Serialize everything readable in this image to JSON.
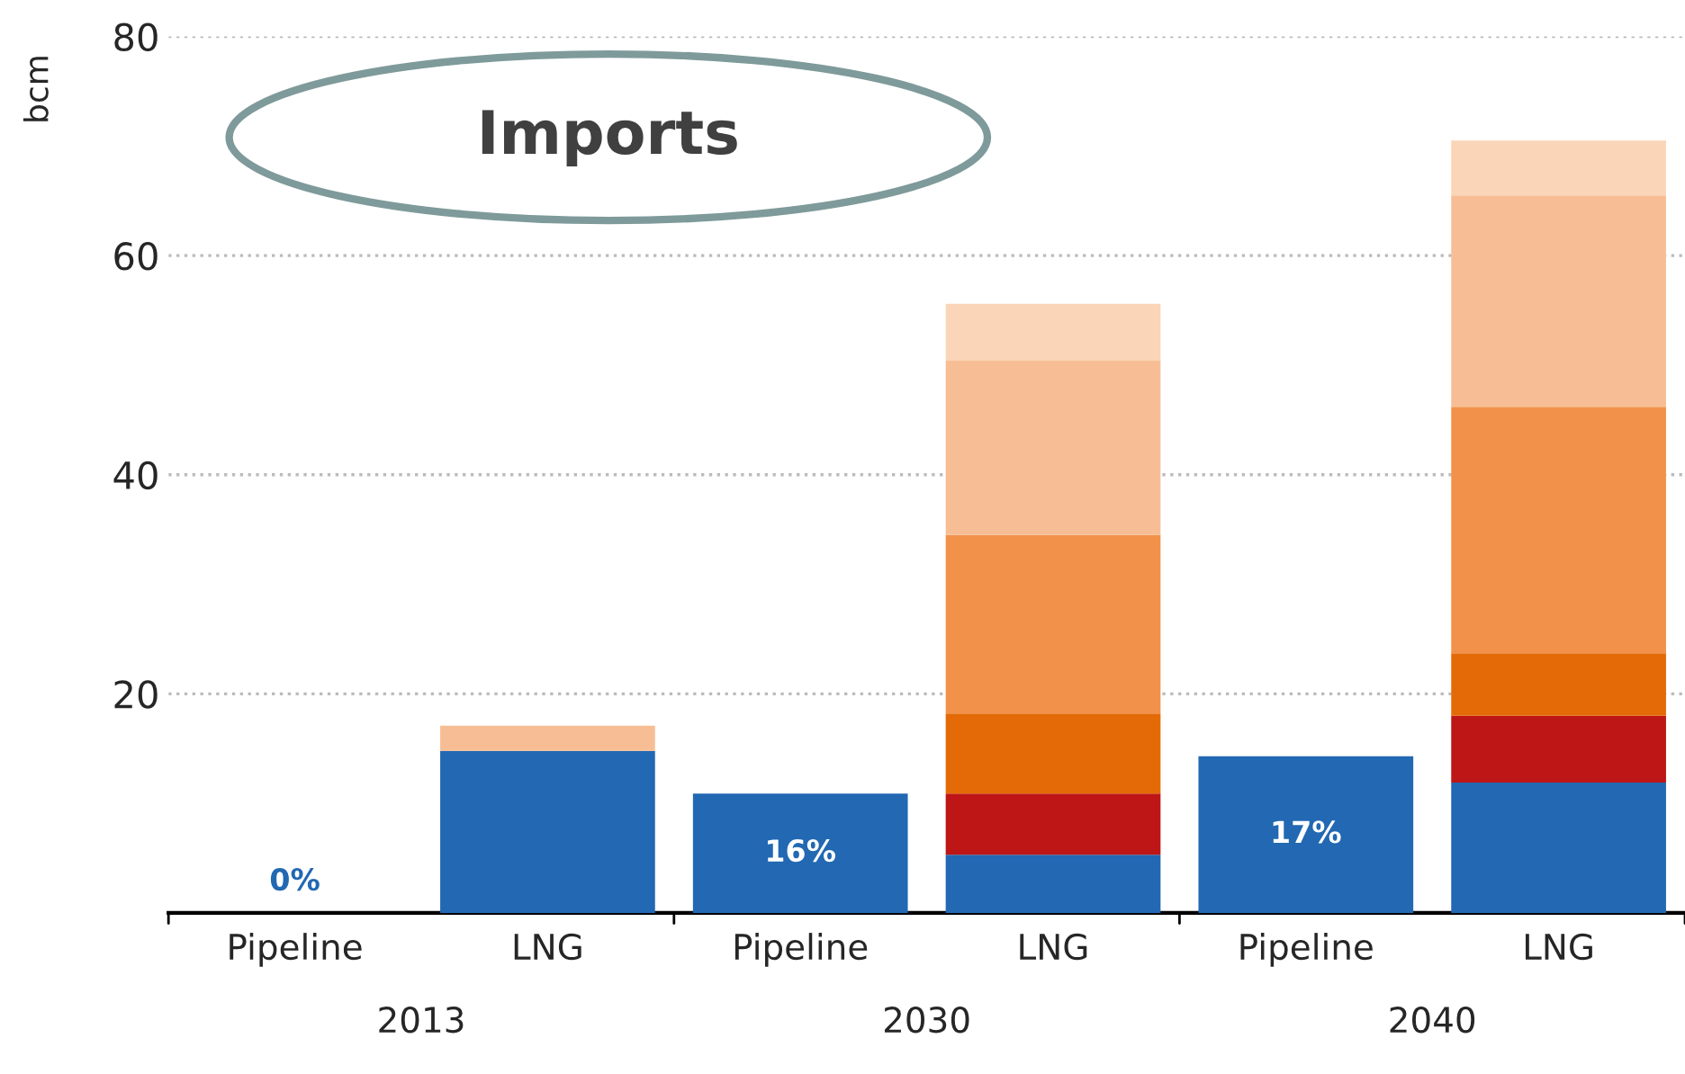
{
  "chart_data": {
    "type": "bar",
    "title": "Imports",
    "ylabel": "bcm",
    "stacked": true,
    "categories": [
      "Pipeline",
      "LNG",
      "Pipeline",
      "LNG",
      "Pipeline",
      "LNG"
    ],
    "annotations": [
      "2013",
      "2030",
      "2040",
      "0%",
      "16%",
      "17%"
    ],
    "series": [
      {
        "color": "#2268b2",
        "values": [
          0,
          14.8,
          10.9,
          5.3,
          14.3,
          11.9
        ]
      },
      {
        "color": "#be1516",
        "values": [
          null,
          null,
          null,
          5.6,
          null,
          6.1
        ]
      },
      {
        "color": "#e36a06",
        "values": [
          null,
          null,
          null,
          7.3,
          null,
          5.7
        ]
      },
      {
        "color": "#f2924a",
        "values": [
          null,
          null,
          null,
          16.3,
          null,
          22.5
        ]
      },
      {
        "color": "#f7be95",
        "values": [
          null,
          2.3,
          null,
          15.9,
          null,
          19.3
        ]
      },
      {
        "color": "#fbd5b7",
        "values": [
          null,
          null,
          null,
          5.2,
          null,
          5.0
        ]
      }
    ],
    "ylim": [
      0,
      80
    ],
    "yticks": [
      {
        "value": 0,
        "label": null
      },
      20,
      40,
      60,
      80
    ],
    "grid": "y"
  }
}
